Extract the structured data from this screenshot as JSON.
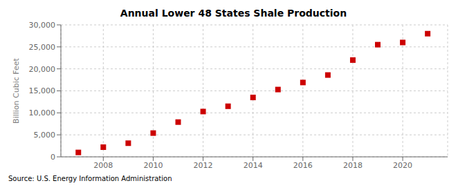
{
  "chart_data": {
    "type": "scatter",
    "title": "Annual Lower 48 States Shale Production",
    "ylabel": "Billion Cubic Feet",
    "annotations": [
      "Source: U.S. Energy Information Administration"
    ],
    "x": [
      2007,
      2008,
      2009,
      2010,
      2011,
      2012,
      2013,
      2014,
      2015,
      2016,
      2017,
      2018,
      2019,
      2020,
      2021
    ],
    "values": [
      1000,
      2200,
      3100,
      5400,
      7900,
      10300,
      11500,
      13500,
      15300,
      16900,
      18600,
      22000,
      25500,
      26000,
      28000
    ],
    "color": "#cc0000",
    "marker": "square",
    "xlim": [
      2006.3,
      2021.8
    ],
    "xticks": [
      2008,
      2010,
      2012,
      2014,
      2016,
      2018,
      2020
    ],
    "ylim": [
      0,
      30000
    ],
    "yticks": [
      0,
      {
        "value": 5000,
        "label": "5,000"
      },
      {
        "value": 10000,
        "label": "10,000"
      },
      {
        "value": 15000,
        "label": "15,000"
      },
      {
        "value": 20000,
        "label": "20,000"
      },
      {
        "value": 25000,
        "label": "25,000"
      },
      {
        "value": 30000,
        "label": "30,000"
      }
    ],
    "grid": true
  }
}
